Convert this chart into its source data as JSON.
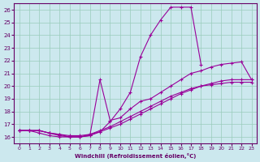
{
  "xlabel": "Windchill (Refroidissement éolien,°C)",
  "bg_color": "#cce8ee",
  "line_color": "#990099",
  "grid_color": "#99ccbb",
  "xlim": [
    -0.5,
    23.5
  ],
  "ylim": [
    15.5,
    26.5
  ],
  "xticks": [
    0,
    1,
    2,
    3,
    4,
    5,
    6,
    7,
    8,
    9,
    10,
    11,
    12,
    13,
    14,
    15,
    16,
    17,
    18,
    19,
    20,
    21,
    22,
    23
  ],
  "yticks": [
    16,
    17,
    18,
    19,
    20,
    21,
    22,
    23,
    24,
    25,
    26
  ],
  "lines": [
    {
      "x": [
        0,
        1,
        2,
        3,
        4,
        5,
        6,
        7,
        8,
        9,
        10,
        11,
        12,
        13,
        14,
        15,
        16,
        17,
        18,
        19,
        20,
        21,
        22,
        23
      ],
      "y": [
        16.5,
        16.5,
        16.5,
        16.3,
        16.1,
        16.0,
        16.0,
        16.1,
        16.4,
        17.2,
        18.2,
        19.5,
        22.3,
        24.0,
        25.2,
        26.2,
        26.2,
        26.2,
        21.7,
        null,
        null,
        null,
        null,
        null
      ]
    },
    {
      "x": [
        0,
        1,
        2,
        3,
        4,
        5,
        6,
        7,
        8,
        9,
        10,
        11,
        12,
        13,
        14,
        15,
        16,
        17,
        18,
        19,
        20,
        21,
        22,
        23
      ],
      "y": [
        16.5,
        16.5,
        16.3,
        16.1,
        16.0,
        16.0,
        16.0,
        16.1,
        20.5,
        17.3,
        17.5,
        18.2,
        18.8,
        19.0,
        19.5,
        20.0,
        20.5,
        21.0,
        21.2,
        21.5,
        21.7,
        21.8,
        21.9,
        20.5
      ]
    },
    {
      "x": [
        0,
        1,
        2,
        3,
        4,
        5,
        6,
        7,
        8,
        9,
        10,
        11,
        12,
        13,
        14,
        15,
        16,
        17,
        18,
        19,
        20,
        21,
        22,
        23
      ],
      "y": [
        16.5,
        16.5,
        16.5,
        16.3,
        16.2,
        16.1,
        16.1,
        16.2,
        16.4,
        16.7,
        17.0,
        17.4,
        17.8,
        18.2,
        18.6,
        19.0,
        19.4,
        19.7,
        20.0,
        20.2,
        20.4,
        20.5,
        20.5,
        20.5
      ]
    },
    {
      "x": [
        0,
        1,
        2,
        3,
        4,
        5,
        6,
        7,
        8,
        9,
        10,
        11,
        12,
        13,
        14,
        15,
        16,
        17,
        18,
        19,
        20,
        21,
        22,
        23
      ],
      "y": [
        16.5,
        16.5,
        16.5,
        16.3,
        16.2,
        16.0,
        16.0,
        16.2,
        16.5,
        16.8,
        17.2,
        17.6,
        18.0,
        18.4,
        18.8,
        19.2,
        19.5,
        19.8,
        20.0,
        20.1,
        20.2,
        20.3,
        20.3,
        20.3
      ]
    }
  ]
}
